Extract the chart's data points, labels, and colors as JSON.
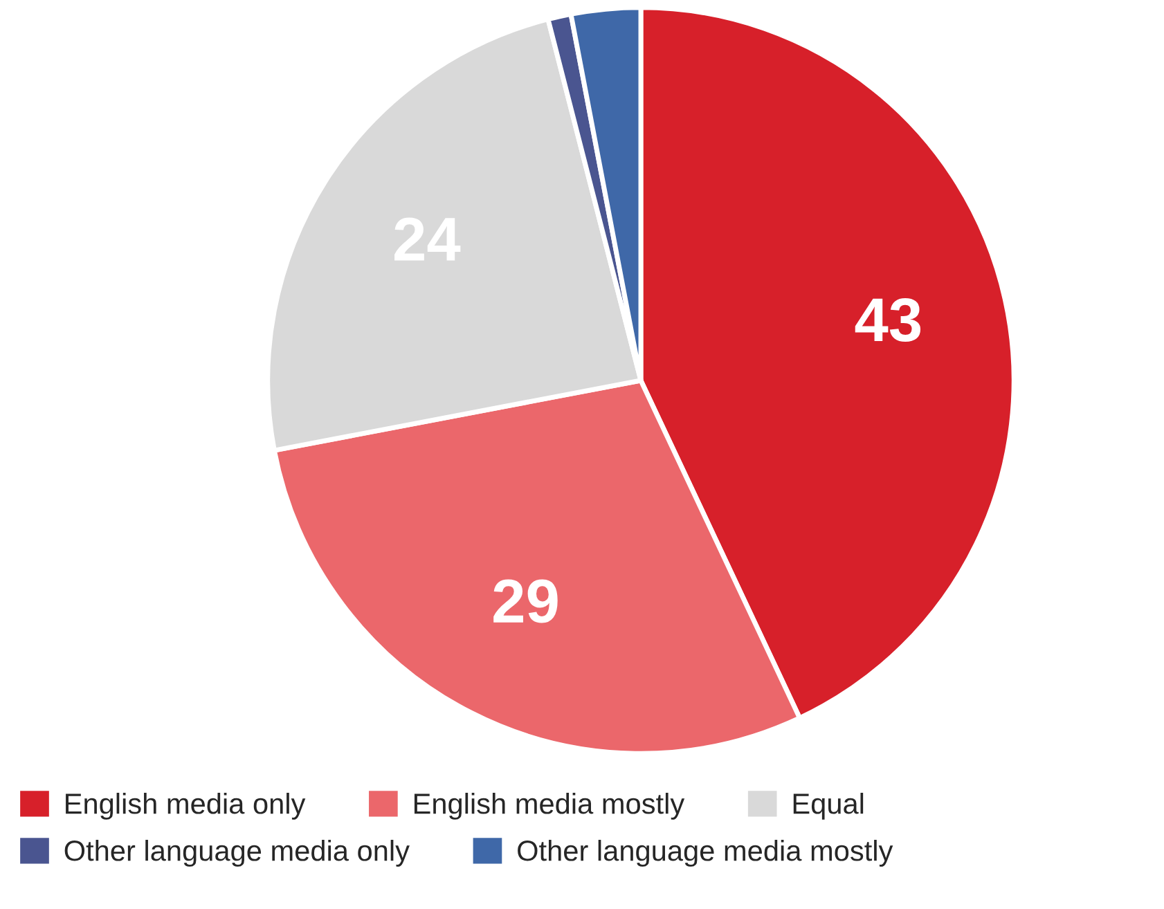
{
  "chart_data": {
    "type": "pie",
    "categories": [
      "English media only",
      "English media mostly",
      "Equal",
      "Other language media only",
      "Other language media mostly"
    ],
    "values": [
      43,
      29,
      24,
      1,
      3
    ],
    "colors": [
      "#d7202a",
      "#eb676b",
      "#d9d9d9",
      "#4a5590",
      "#3f68a8"
    ],
    "value_labels": [
      "43",
      "29",
      "24",
      null,
      null
    ],
    "legend": "bottom"
  }
}
